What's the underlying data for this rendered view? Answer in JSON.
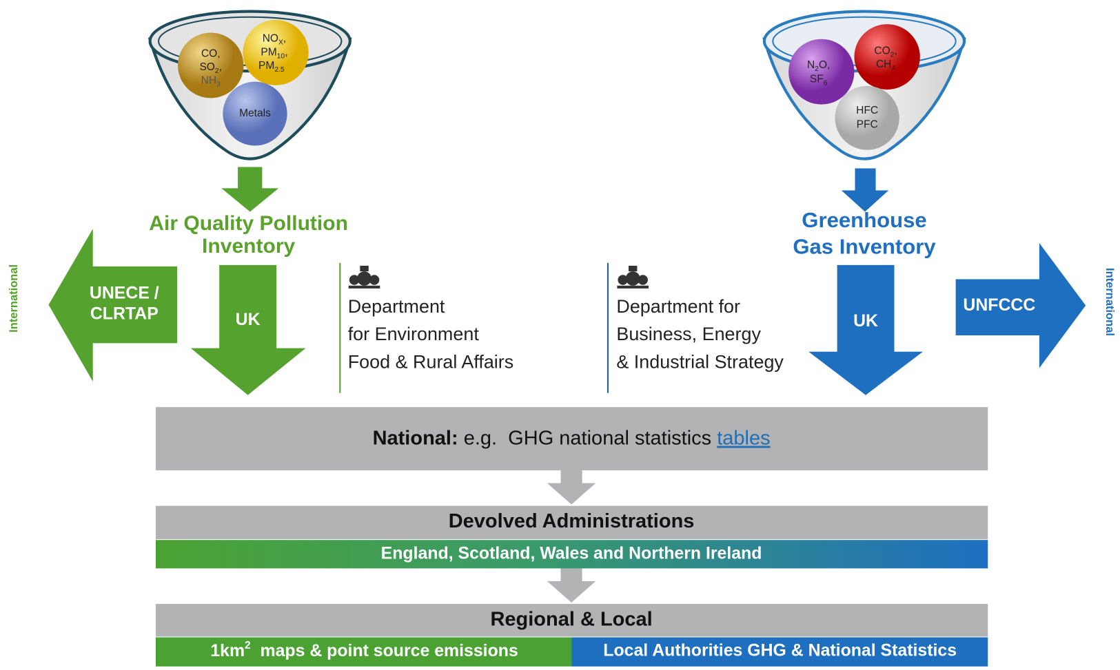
{
  "air_quality": {
    "balls": [
      {
        "lines": [
          {
            "t": "CO,"
          },
          {
            "t": "SO",
            "sub": "2",
            "end": ","
          },
          {
            "t": "NH",
            "sub": "3"
          }
        ]
      },
      {
        "lines": [
          {
            "t": "NO",
            "sub": "X",
            "end": ","
          },
          {
            "t": "PM",
            "sub": "10",
            "end": ","
          },
          {
            "t": "PM",
            "sub": "2.5"
          }
        ]
      },
      {
        "lines": [
          {
            "t": "Metals"
          }
        ]
      }
    ],
    "title": [
      "Air Quality Pollution",
      "Inventory"
    ],
    "uk": "UK",
    "international_body": [
      "UNECE /",
      "CLRTAP"
    ],
    "international": "International",
    "department": [
      "Department",
      "for Environment",
      "Food & Rural Affairs"
    ]
  },
  "greenhouse": {
    "balls": [
      {
        "lines": [
          {
            "t": "N",
            "sub": "2",
            "end": "O,"
          },
          {
            "t": "SF",
            "sub": "6"
          }
        ]
      },
      {
        "lines": [
          {
            "t": "CO",
            "sub": "2",
            "end": ","
          },
          {
            "t": "CH",
            "sub": "4"
          }
        ]
      },
      {
        "lines": [
          {
            "t": "HFC"
          },
          {
            "t": "PFC"
          }
        ]
      }
    ],
    "title": [
      "Greenhouse",
      "Gas Inventory"
    ],
    "uk": "UK",
    "international_body": "UNFCCC",
    "international": "International",
    "department": [
      "Department for",
      "Business, Energy",
      "& Industrial Strategy"
    ]
  },
  "national": {
    "label": "National:",
    "text": " e.g.  GHG national statistics ",
    "link": "tables"
  },
  "devolved": {
    "title": "Devolved Administrations",
    "detail": "England, Scotland, Wales and Northern Ireland"
  },
  "regional": {
    "title": "Regional & Local",
    "left": {
      "t": "1km",
      "sup": "2",
      "end": "  maps & point source emissions"
    },
    "right": "Local Authorities GHG & National Statistics"
  }
}
